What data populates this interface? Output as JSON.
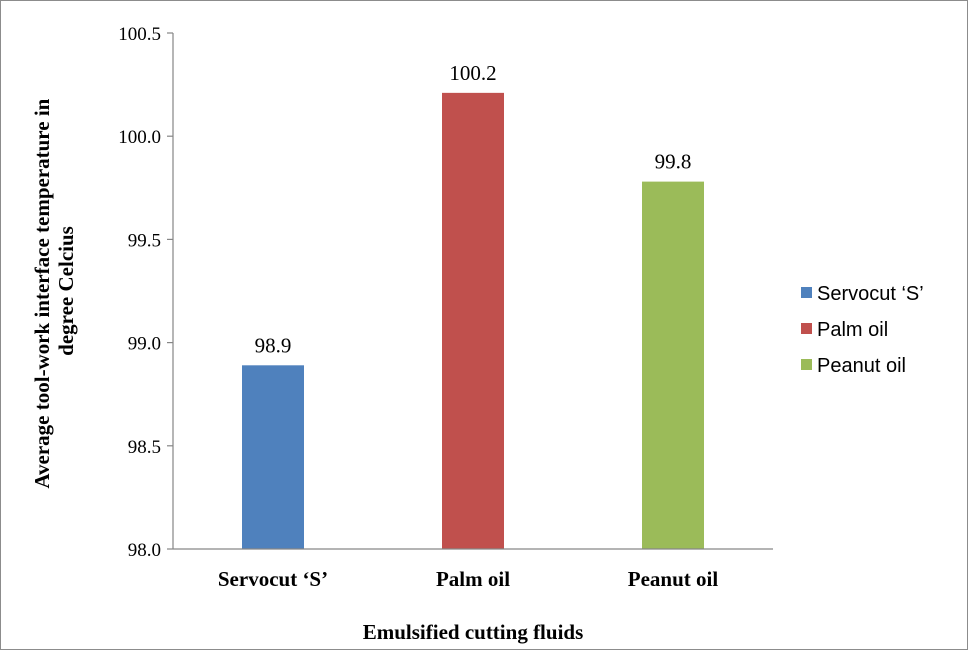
{
  "chart_data": {
    "type": "bar",
    "title": "",
    "xlabel": "Emulsified  cutting fluids",
    "ylabel": "Average tool-work interface temperature in degree Celcius",
    "ylabel_lines": [
      "Average tool-work interface temperature in",
      "degree Celcius"
    ],
    "categories": [
      "Servocut ‘S’",
      "Palm oil",
      "Peanut oil"
    ],
    "values": [
      98.89,
      100.21,
      99.78
    ],
    "value_labels": [
      "98.9",
      "100.2",
      "99.8"
    ],
    "colors": [
      "#4f81bd",
      "#c0504d",
      "#9bbb59"
    ],
    "ylim": [
      98.0,
      100.5
    ],
    "yticks": [
      "98.0",
      "98.5",
      "99.0",
      "99.5",
      "100.0",
      "100.5"
    ],
    "grid": false,
    "legend_position": "right",
    "legend": [
      "Servocut ‘S’",
      "Palm oil",
      "Peanut oil"
    ]
  }
}
